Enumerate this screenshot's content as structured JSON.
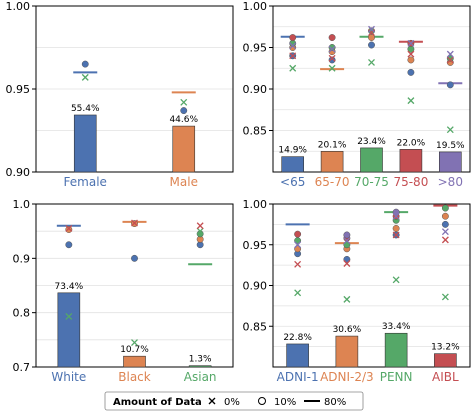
{
  "chart_data": [
    {
      "type": "bar",
      "categories": [
        "Female",
        "Male"
      ],
      "category_colors": [
        "#4c72b0",
        "#dd8452"
      ],
      "values_pct": [
        55.4,
        44.6
      ],
      "bar_labels": [
        "55.4%",
        "44.6%"
      ],
      "ylim": [
        0.9,
        1.0
      ],
      "yticks": [
        "0.90",
        "0.95",
        "1.00"
      ],
      "grid": true,
      "markers": {
        "x_0pct": [
          0.957,
          0.942
        ],
        "circle_10pct": [
          0.965,
          0.937
        ],
        "line_80pct": [
          0.96,
          0.948
        ]
      }
    },
    {
      "type": "bar",
      "categories": [
        "<65",
        "65-70",
        "70-75",
        "75-80",
        ">80"
      ],
      "category_colors": [
        "#4c72b0",
        "#dd8452",
        "#55a868",
        "#c44e52",
        "#8172b3"
      ],
      "values_pct": [
        14.9,
        20.1,
        23.4,
        22.0,
        19.5
      ],
      "bar_labels": [
        "14.9%",
        "20.1%",
        "23.4%",
        "22.0%",
        "19.5%"
      ],
      "ylim": [
        0.8,
        1.0
      ],
      "yticks": [
        "0.85",
        "0.90",
        "0.95",
        "1.00"
      ],
      "grid": true,
      "markers": {
        "x_0pct": [
          [
            0.925,
            0.94,
            0.952
          ],
          [
            0.925,
            0.937,
            0.948
          ],
          [
            0.932,
            0.968,
            0.972
          ],
          [
            0.886,
            0.942,
            0.955
          ],
          [
            0.851,
            0.935,
            0.942
          ]
        ],
        "circle_10pct": [
          [
            0.94,
            0.95,
            0.955,
            0.962
          ],
          [
            0.935,
            0.945,
            0.95,
            0.962
          ],
          [
            0.953,
            0.962,
            0.97
          ],
          [
            0.92,
            0.935,
            0.948,
            0.955
          ],
          [
            0.905,
            0.932,
            0.937
          ]
        ],
        "line_80pct": [
          0.963,
          0.924,
          0.963,
          0.957,
          0.907
        ]
      }
    },
    {
      "type": "bar",
      "categories": [
        "White",
        "Black",
        "Asian"
      ],
      "category_colors": [
        "#4c72b0",
        "#dd8452",
        "#55a868"
      ],
      "values_pct": [
        73.4,
        10.7,
        1.3
      ],
      "bar_labels": [
        "73.4%",
        "10.7%",
        "1.3%"
      ],
      "ylim": [
        0.7,
        1.0
      ],
      "yticks": [
        "0.7",
        "0.8",
        "0.9",
        "1.0"
      ],
      "grid": true,
      "markers": {
        "x_0pct": [
          [
            0.793,
            0.955
          ],
          [
            0.745,
            0.965
          ],
          [
            0.95,
            0.96
          ]
        ],
        "circle_10pct": [
          [
            0.925,
            0.953
          ],
          [
            0.9,
            0.964
          ],
          [
            0.925,
            0.935,
            0.945
          ]
        ],
        "line_80pct": [
          0.96,
          0.967,
          0.889
        ]
      }
    },
    {
      "type": "bar",
      "categories": [
        "ADNI-1",
        "ADNI-2/3",
        "PENN",
        "AIBL"
      ],
      "category_colors": [
        "#4c72b0",
        "#dd8452",
        "#55a868",
        "#c44e52"
      ],
      "values_pct": [
        22.8,
        30.6,
        33.4,
        13.2
      ],
      "bar_labels": [
        "22.8%",
        "30.6%",
        "33.4%",
        "13.2%"
      ],
      "ylim": [
        0.8,
        1.0
      ],
      "yticks": [
        "0.85",
        "0.90",
        "0.95",
        "1.00"
      ],
      "grid": true,
      "markers": {
        "x_0pct": [
          [
            0.891,
            0.926,
            0.95
          ],
          [
            0.883,
            0.927,
            0.955
          ],
          [
            0.907,
            0.962,
            0.985
          ],
          [
            0.886,
            0.956,
            0.966
          ]
        ],
        "circle_10pct": [
          [
            0.939,
            0.945,
            0.955,
            0.963
          ],
          [
            0.932,
            0.945,
            0.95,
            0.958,
            0.962
          ],
          [
            0.962,
            0.97,
            0.98,
            0.985,
            0.99
          ],
          [
            0.975,
            0.985,
            0.995
          ]
        ],
        "line_80pct": [
          0.975,
          0.952,
          0.99,
          0.998
        ]
      }
    }
  ],
  "legend": {
    "title": "Amount of Data",
    "items": [
      {
        "marker": "x",
        "label": "0%"
      },
      {
        "marker": "circle",
        "label": "10%"
      },
      {
        "marker": "line",
        "label": "80%"
      }
    ]
  }
}
